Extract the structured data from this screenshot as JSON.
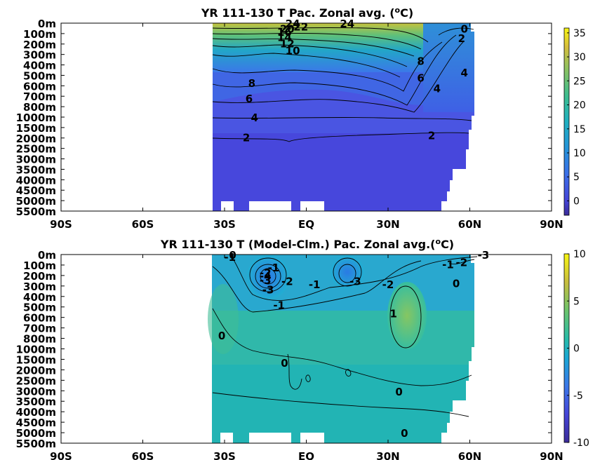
{
  "chart_data": [
    {
      "type": "heatmap",
      "title_main": "YR 111-130 T Pac. Zonal avg. (",
      "title_sup": "o",
      "title_end": "C)",
      "x_ticks": [
        "90S",
        "60S",
        "30S",
        "EQ",
        "30N",
        "60N",
        "90N"
      ],
      "x_tick_values": [
        -90,
        -60,
        -30,
        0,
        30,
        60,
        90
      ],
      "y_ticks": [
        "0m",
        "100m",
        "200m",
        "300m",
        "400m",
        "500m",
        "600m",
        "700m",
        "800m",
        "1000m",
        "1500m",
        "2000m",
        "2500m",
        "3000m",
        "3500m",
        "4000m",
        "4500m",
        "5000m",
        "5500m"
      ],
      "y_tick_depths": [
        0,
        100,
        200,
        300,
        400,
        500,
        600,
        700,
        800,
        1000,
        1500,
        2000,
        2500,
        3000,
        3500,
        4000,
        4500,
        5000,
        5500
      ],
      "colorbar_ticks": [
        "35",
        "30",
        "25",
        "20",
        "15",
        "10",
        "5",
        "0"
      ],
      "colorbar_values": [
        35,
        30,
        25,
        20,
        15,
        10,
        5,
        0
      ],
      "colorbar_range": [
        -3,
        36
      ],
      "contour_labels": [
        {
          "text": "24",
          "lat": -5,
          "depth": 0
        },
        {
          "text": "24",
          "lat": 15,
          "depth": 0
        },
        {
          "text": "22",
          "lat": -2,
          "depth": 30
        },
        {
          "text": "20",
          "lat": -7,
          "depth": 50
        },
        {
          "text": "16",
          "lat": -8,
          "depth": 80
        },
        {
          "text": "14",
          "lat": -8,
          "depth": 130
        },
        {
          "text": "12",
          "lat": -7,
          "depth": 190
        },
        {
          "text": "10",
          "lat": -5,
          "depth": 260
        },
        {
          "text": "8",
          "lat": -20,
          "depth": 570
        },
        {
          "text": "6",
          "lat": -21,
          "depth": 720
        },
        {
          "text": "4",
          "lat": -19,
          "depth": 1000
        },
        {
          "text": "2",
          "lat": -22,
          "depth": 1950
        },
        {
          "text": "2",
          "lat": 46,
          "depth": 1860
        },
        {
          "text": "8",
          "lat": 42,
          "depth": 360
        },
        {
          "text": "6",
          "lat": 42,
          "depth": 520
        },
        {
          "text": "4",
          "lat": 48,
          "depth": 620
        },
        {
          "text": "4",
          "lat": 58,
          "depth": 470
        },
        {
          "text": "2",
          "lat": 57,
          "depth": 140
        },
        {
          "text": "0",
          "lat": 58,
          "depth": 50
        }
      ]
    },
    {
      "type": "heatmap",
      "title_main": "YR 111-130 T (Model-Clm.) Pac. Zonal avg.(",
      "title_sup": "o",
      "title_end": "C)",
      "x_ticks": [
        "90S",
        "60S",
        "30S",
        "EQ",
        "30N",
        "60N",
        "90N"
      ],
      "x_tick_values": [
        -90,
        -60,
        -30,
        0,
        30,
        60,
        90
      ],
      "y_ticks": [
        "0m",
        "100m",
        "200m",
        "300m",
        "400m",
        "500m",
        "600m",
        "700m",
        "800m",
        "1000m",
        "1500m",
        "2000m",
        "2500m",
        "3000m",
        "3500m",
        "4000m",
        "4500m",
        "5000m",
        "5500m"
      ],
      "y_tick_depths": [
        0,
        100,
        200,
        300,
        400,
        500,
        600,
        700,
        800,
        1000,
        1500,
        2000,
        2500,
        3000,
        3500,
        4000,
        4500,
        5000,
        5500
      ],
      "colorbar_ticks": [
        "10",
        "5",
        "0",
        "-5",
        "-10"
      ],
      "colorbar_values": [
        10,
        5,
        0,
        -5,
        -10
      ],
      "colorbar_range": [
        -10,
        10
      ],
      "contour_labels": [
        {
          "text": "0",
          "lat": -27,
          "depth": 0
        },
        {
          "text": "-1",
          "lat": -28,
          "depth": 20
        },
        {
          "text": "-1",
          "lat": -12,
          "depth": 120
        },
        {
          "text": "-2",
          "lat": -15,
          "depth": 170
        },
        {
          "text": "-4",
          "lat": -15,
          "depth": 200
        },
        {
          "text": "-3",
          "lat": -15,
          "depth": 240
        },
        {
          "text": "-3",
          "lat": -14,
          "depth": 330
        },
        {
          "text": "-2",
          "lat": -7,
          "depth": 250
        },
        {
          "text": "-1",
          "lat": 3,
          "depth": 280
        },
        {
          "text": "-3",
          "lat": 18,
          "depth": 250
        },
        {
          "text": "-2",
          "lat": 30,
          "depth": 280
        },
        {
          "text": "-1",
          "lat": -10,
          "depth": 480
        },
        {
          "text": "-1",
          "lat": 52,
          "depth": 90
        },
        {
          "text": "-2",
          "lat": 57,
          "depth": 70
        },
        {
          "text": "-3",
          "lat": 65,
          "depth": 0
        },
        {
          "text": "0",
          "lat": 55,
          "depth": 270
        },
        {
          "text": "1",
          "lat": 32,
          "depth": 560
        },
        {
          "text": "0",
          "lat": -31,
          "depth": 770
        },
        {
          "text": "0",
          "lat": -8,
          "depth": 1660
        },
        {
          "text": "0",
          "lat": 34,
          "depth": 3030
        },
        {
          "text": "0",
          "lat": 36,
          "depth": 5000
        }
      ]
    }
  ]
}
